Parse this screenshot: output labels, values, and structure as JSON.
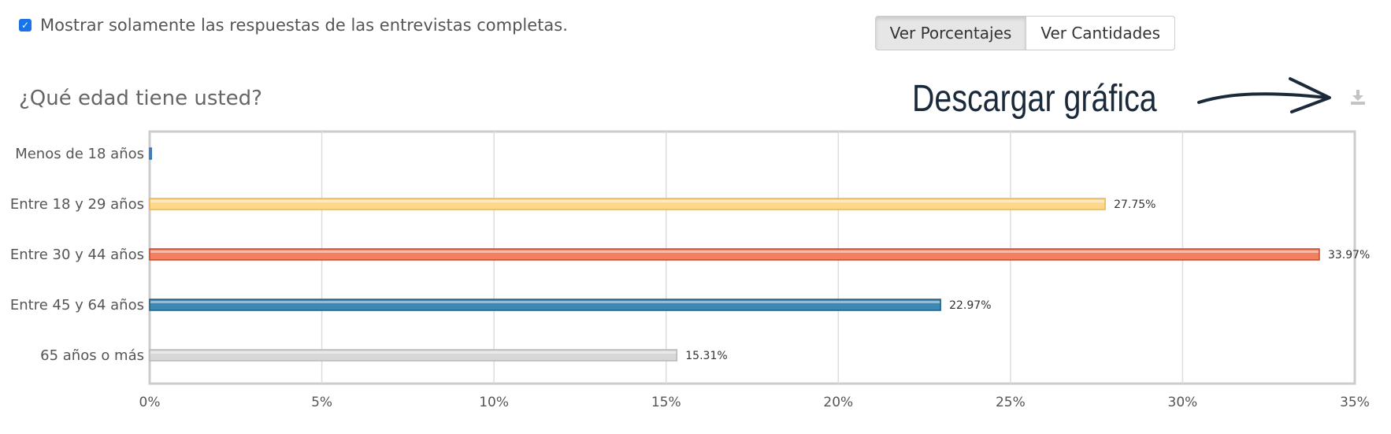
{
  "filter": {
    "checked": true,
    "label": "Mostrar solamente las respuestas de las entrevistas completas."
  },
  "view_buttons": {
    "percent_label": "Ver Porcentajes",
    "count_label": "Ver Cantidades",
    "selected": "percent"
  },
  "question": {
    "title": "¿Qué edad tiene usted?"
  },
  "annotation": {
    "text": "Descargar gráfica"
  },
  "download": {
    "icon": "download-icon"
  },
  "chart_data": {
    "type": "bar",
    "orientation": "horizontal",
    "categories": [
      "Menos de 18 años",
      "Entre 18 y 29 años",
      "Entre 30 y 44 años",
      "Entre 45 y 64 años",
      "65 años o más"
    ],
    "values": [
      0.05,
      27.75,
      33.97,
      22.97,
      15.31
    ],
    "data_labels": [
      "",
      "27.75%",
      "33.97%",
      "22.97%",
      "15.31%"
    ],
    "colors": [
      "#5b9bd5",
      "#ffd88a",
      "#f28060",
      "#3b88b5",
      "#d8d8d8"
    ],
    "stroke_colors": [
      "#2f6fb0",
      "#e9b45a",
      "#c74a2a",
      "#1f5f85",
      "#b9b9b9"
    ],
    "xlim": [
      0,
      35
    ],
    "xticks": [
      "0%",
      "5%",
      "10%",
      "15%",
      "20%",
      "25%",
      "30%",
      "35%"
    ],
    "grid": true
  }
}
